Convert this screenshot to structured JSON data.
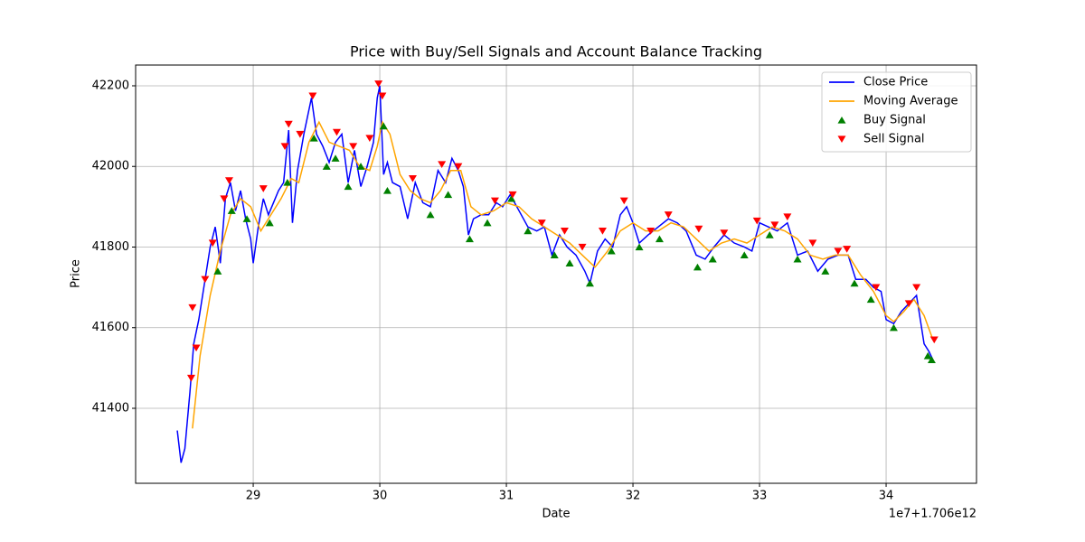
{
  "chart_data": {
    "type": "line",
    "title": "Price with Buy/Sell Signals and Account Balance Tracking",
    "x_label": "Date",
    "y_label": "Price",
    "x_offset_label": "1e7+1.706e12",
    "xlim": [
      28.071,
      34.714
    ],
    "ylim": [
      41214,
      42251.5
    ],
    "xticks": [
      29,
      30,
      31,
      32,
      33,
      34
    ],
    "yticks": [
      41400,
      41600,
      41800,
      42000,
      42200
    ],
    "grid": true,
    "legend": "upper right",
    "series": [
      {
        "name": "Close Price",
        "color": "#0000ff",
        "type": "line",
        "x": [
          28.4,
          28.43,
          28.46,
          28.5,
          28.53,
          28.57,
          28.62,
          28.66,
          28.7,
          28.74,
          28.78,
          28.82,
          28.86,
          28.9,
          28.94,
          28.98,
          29.0,
          29.04,
          29.08,
          29.12,
          29.16,
          29.2,
          29.24,
          29.28,
          29.31,
          29.35,
          29.4,
          29.46,
          29.5,
          29.55,
          29.6,
          29.65,
          29.7,
          29.75,
          29.8,
          29.85,
          29.9,
          29.95,
          29.98,
          30.0,
          30.03,
          30.06,
          30.1,
          30.16,
          30.22,
          30.28,
          30.34,
          30.4,
          30.46,
          30.52,
          30.57,
          30.62,
          30.66,
          30.7,
          30.74,
          30.8,
          30.86,
          30.92,
          30.97,
          31.03,
          31.1,
          31.17,
          31.24,
          31.3,
          31.36,
          31.42,
          31.48,
          31.55,
          31.62,
          31.66,
          31.72,
          31.78,
          31.84,
          31.9,
          31.95,
          32.0,
          32.05,
          32.12,
          32.2,
          32.28,
          32.35,
          32.42,
          32.5,
          32.57,
          32.64,
          32.72,
          32.8,
          32.88,
          32.94,
          33.0,
          33.07,
          33.14,
          33.22,
          33.3,
          33.38,
          33.46,
          33.54,
          33.62,
          33.7,
          33.76,
          33.84,
          33.9,
          33.96,
          34.0,
          34.06,
          34.12,
          34.18,
          34.24,
          34.3,
          34.34,
          34.37
        ],
        "values": [
          41345,
          41265,
          41300,
          41440,
          41560,
          41620,
          41720,
          41800,
          41850,
          41760,
          41920,
          41960,
          41890,
          41940,
          41870,
          41820,
          41760,
          41850,
          41920,
          41880,
          41910,
          41940,
          41960,
          42090,
          41860,
          41990,
          42080,
          42170,
          42080,
          42050,
          42010,
          42060,
          42080,
          41960,
          42040,
          41950,
          42000,
          42060,
          42170,
          42200,
          41980,
          42010,
          41960,
          41950,
          41870,
          41960,
          41910,
          41900,
          41990,
          41960,
          42020,
          41990,
          41950,
          41830,
          41870,
          41880,
          41880,
          41910,
          41900,
          41930,
          41890,
          41850,
          41840,
          41850,
          41780,
          41830,
          41800,
          41780,
          41740,
          41710,
          41790,
          41820,
          41800,
          41880,
          41900,
          41860,
          41810,
          41830,
          41850,
          41870,
          41860,
          41840,
          41780,
          41770,
          41800,
          41830,
          41810,
          41800,
          41790,
          41860,
          41850,
          41840,
          41860,
          41780,
          41790,
          41740,
          41770,
          41780,
          41780,
          41720,
          41720,
          41700,
          41690,
          41620,
          41610,
          41640,
          41660,
          41680,
          41560,
          41540,
          41520
        ]
      },
      {
        "name": "Moving Average",
        "color": "#ffa500",
        "type": "line",
        "x": [
          28.52,
          28.58,
          28.66,
          28.74,
          28.82,
          28.9,
          28.98,
          29.06,
          29.14,
          29.22,
          29.3,
          29.36,
          29.44,
          29.52,
          29.6,
          29.68,
          29.76,
          29.84,
          29.92,
          29.98,
          30.02,
          30.08,
          30.16,
          30.24,
          30.32,
          30.4,
          30.48,
          30.56,
          30.64,
          30.72,
          30.8,
          30.9,
          31.0,
          31.1,
          31.2,
          31.3,
          31.4,
          31.5,
          31.6,
          31.7,
          31.8,
          31.9,
          32.0,
          32.1,
          32.2,
          32.3,
          32.4,
          32.5,
          32.6,
          32.7,
          32.8,
          32.9,
          33.0,
          33.1,
          33.2,
          33.3,
          33.4,
          33.5,
          33.6,
          33.7,
          33.8,
          33.9,
          34.0,
          34.06,
          34.14,
          34.22,
          34.3,
          34.37
        ],
        "values": [
          41350,
          41530,
          41680,
          41790,
          41880,
          41920,
          41900,
          41840,
          41880,
          41920,
          41970,
          41960,
          42060,
          42110,
          42060,
          42050,
          42040,
          42000,
          41990,
          42050,
          42110,
          42080,
          41980,
          41940,
          41920,
          41910,
          41940,
          41990,
          41990,
          41900,
          41880,
          41890,
          41910,
          41900,
          41870,
          41850,
          41830,
          41810,
          41780,
          41750,
          41790,
          41840,
          41860,
          41840,
          41840,
          41860,
          41850,
          41820,
          41790,
          41810,
          41820,
          41810,
          41830,
          41850,
          41840,
          41820,
          41780,
          41770,
          41780,
          41780,
          41730,
          41690,
          41630,
          41615,
          41640,
          41670,
          41630,
          41570
        ]
      },
      {
        "name": "Buy Signal",
        "color": "#008000",
        "type": "scatter",
        "marker": "^",
        "x": [
          28.72,
          28.83,
          28.95,
          29.13,
          29.27,
          29.48,
          29.58,
          29.65,
          29.75,
          29.85,
          30.03,
          30.06,
          30.4,
          30.54,
          30.71,
          30.85,
          31.04,
          31.17,
          31.38,
          31.5,
          31.66,
          31.83,
          32.05,
          32.21,
          32.51,
          32.63,
          32.88,
          33.08,
          33.3,
          33.52,
          33.75,
          33.88,
          34.06,
          34.33,
          34.36
        ],
        "values": [
          41740,
          41890,
          41870,
          41860,
          41960,
          42070,
          42000,
          42020,
          41950,
          42000,
          42100,
          41940,
          41880,
          41930,
          41820,
          41860,
          41920,
          41840,
          41780,
          41760,
          41710,
          41790,
          41800,
          41820,
          41750,
          41770,
          41780,
          41830,
          41770,
          41740,
          41710,
          41670,
          41600,
          41530,
          41520
        ]
      },
      {
        "name": "Sell Signal",
        "color": "#ff0000",
        "type": "scatter",
        "marker": "v",
        "x": [
          28.51,
          28.52,
          28.55,
          28.62,
          28.68,
          28.77,
          28.81,
          29.08,
          29.25,
          29.28,
          29.37,
          29.47,
          29.66,
          29.79,
          29.92,
          29.99,
          30.02,
          30.26,
          30.49,
          30.62,
          30.91,
          31.05,
          31.28,
          31.46,
          31.6,
          31.76,
          31.93,
          32.14,
          32.28,
          32.52,
          32.72,
          32.98,
          33.12,
          33.22,
          33.42,
          33.62,
          33.69,
          33.92,
          34.18,
          34.24,
          34.38
        ],
        "values": [
          41475,
          41650,
          41550,
          41720,
          41810,
          41920,
          41965,
          41945,
          42050,
          42105,
          42080,
          42175,
          42085,
          42050,
          42070,
          42205,
          42175,
          41970,
          42005,
          42000,
          41915,
          41930,
          41860,
          41840,
          41800,
          41840,
          41915,
          41840,
          41880,
          41845,
          41835,
          41865,
          41855,
          41875,
          41810,
          41790,
          41795,
          41700,
          41660,
          41700,
          41570
        ]
      }
    ]
  }
}
